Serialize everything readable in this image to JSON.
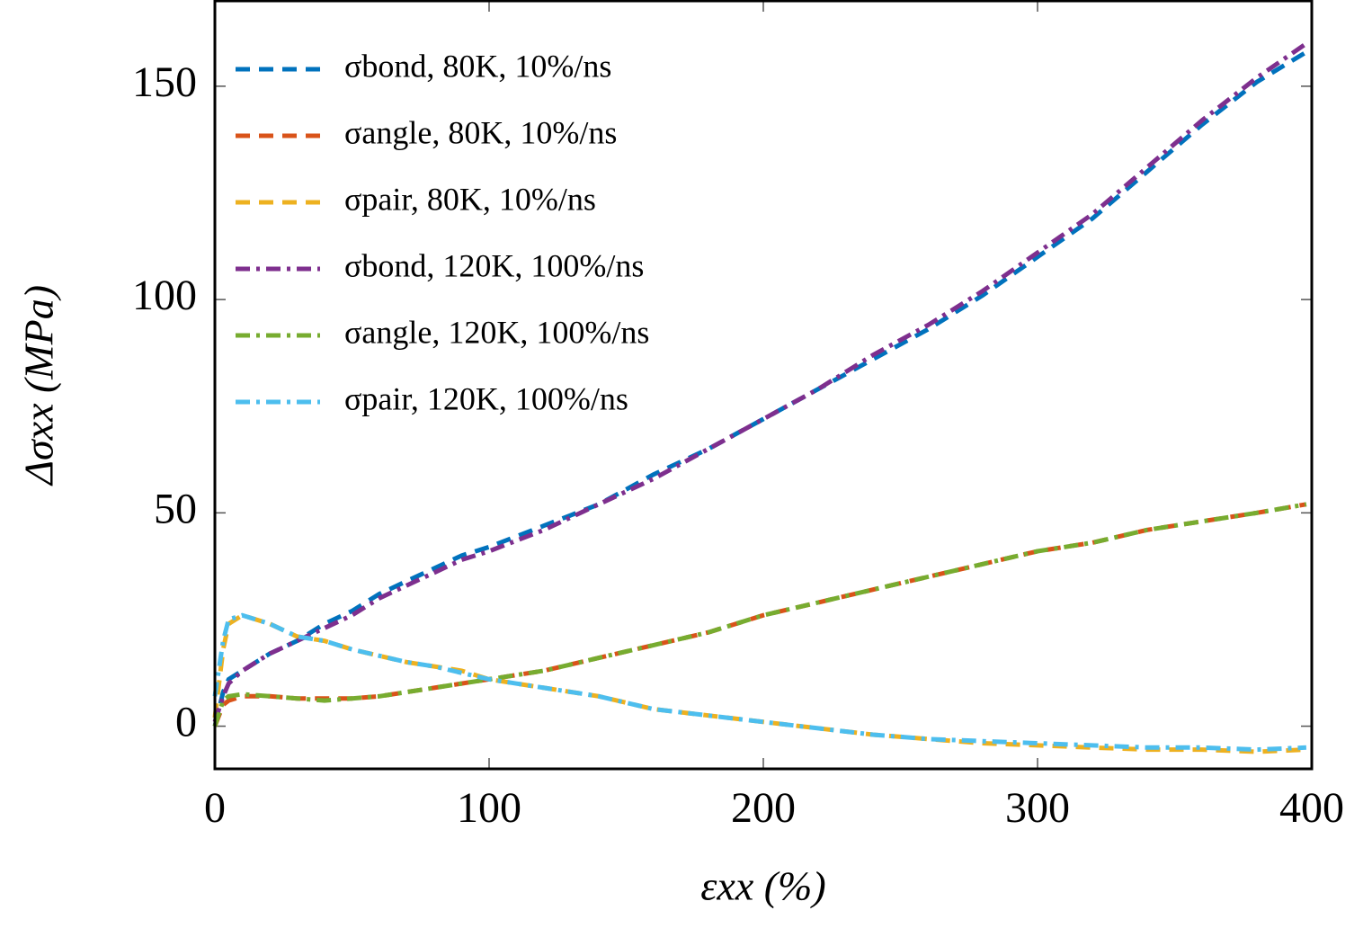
{
  "chart_data": {
    "type": "line",
    "xlabel": "εxx (%)",
    "ylabel": "Δσxx (MPa)",
    "x": [
      0,
      3,
      5,
      10,
      20,
      30,
      40,
      50,
      60,
      70,
      80,
      90,
      100,
      120,
      140,
      160,
      180,
      200,
      220,
      240,
      260,
      280,
      300,
      320,
      340,
      360,
      380,
      398
    ],
    "series": [
      {
        "name": "σbond, 80K, 10%/ns",
        "color": "#0072bd",
        "linestyle": "dashed",
        "values": [
          0,
          8,
          11,
          13,
          17,
          20,
          24,
          27,
          31,
          34,
          37,
          40,
          42,
          47,
          52,
          59,
          65,
          72,
          79,
          86,
          93,
          101,
          110,
          119,
          130,
          141,
          151,
          158
        ]
      },
      {
        "name": "σangle, 80K, 10%/ns",
        "color": "#d95319",
        "linestyle": "dashed",
        "values": [
          0,
          5,
          6,
          7,
          7,
          6.5,
          6.5,
          6.5,
          7,
          8,
          9,
          10,
          11,
          13,
          16,
          19,
          22,
          26,
          29,
          32,
          35,
          38,
          41,
          43,
          46,
          48,
          50,
          52
        ]
      },
      {
        "name": "σpair, 80K, 10%/ns",
        "color": "#edb120",
        "linestyle": "dashed",
        "values": [
          2,
          18,
          24,
          26,
          24,
          21,
          20,
          18,
          16.5,
          15,
          14,
          13,
          11,
          9,
          7,
          4,
          2.5,
          1,
          -0.5,
          -2,
          -3,
          -4,
          -4.5,
          -5,
          -5.5,
          -5.5,
          -6,
          -5.5
        ]
      },
      {
        "name": "σbond, 120K, 100%/ns",
        "color": "#7e2f8e",
        "linestyle": "dashdot",
        "values": [
          1,
          7,
          10,
          13,
          17,
          20,
          23,
          26,
          30,
          33,
          36,
          39,
          41,
          46,
          52,
          58,
          65,
          72,
          79,
          87,
          94,
          102,
          111,
          120,
          131,
          142,
          152,
          160
        ]
      },
      {
        "name": "σangle, 120K, 100%/ns",
        "color": "#77ac30",
        "linestyle": "dashdot",
        "values": [
          0,
          6,
          7,
          7.5,
          7,
          6.5,
          6,
          6.5,
          7,
          8,
          9,
          10,
          11,
          13,
          16,
          19,
          22,
          26,
          29,
          32,
          35,
          38,
          41,
          43,
          46,
          48,
          50,
          52
        ]
      },
      {
        "name": "σpair, 120K, 100%/ns",
        "color": "#4dbeee",
        "linestyle": "dashdot",
        "values": [
          7,
          20,
          25,
          26,
          24,
          21,
          20,
          18,
          16.5,
          15,
          14,
          12.5,
          11,
          9,
          7,
          4,
          2.5,
          1,
          -0.5,
          -2,
          -3,
          -3.5,
          -4,
          -4.5,
          -5,
          -5,
          -5.5,
          -5
        ]
      }
    ],
    "xlim": [
      0,
      400
    ],
    "xticks": [
      0,
      100,
      200,
      300,
      400
    ],
    "ylim": [
      -10,
      170
    ],
    "yticks": [
      0,
      50,
      100,
      150
    ],
    "grid": false,
    "legend": "upper left"
  }
}
